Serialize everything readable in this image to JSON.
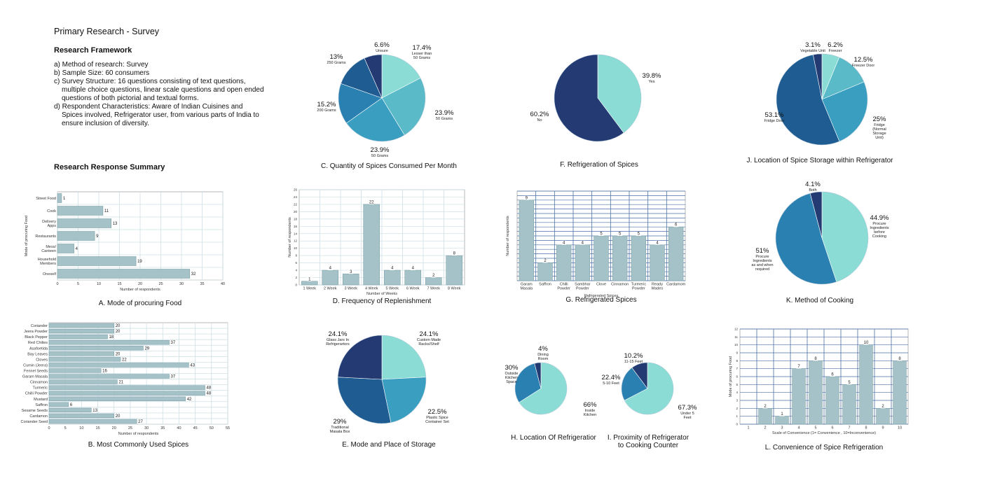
{
  "intro": {
    "title": "Primary Research - Survey",
    "framework_heading": "Research Framework",
    "items": [
      "a) Method of research: Survey",
      "b) Sample Size: 60 consumers",
      "c) Survey Structure: 16 questions consisting of text questions, multiple choice questions, linear scale questions and open ended questions of both pictorial and textual forms.",
      "d) Respondent Characteristics: Aware of Indian Cuisines and Spices involved, Refrigerator user, from various parts of India to ensure inclusion of diversity."
    ],
    "summary_heading": "Research Response Summary"
  },
  "colors": {
    "bar_fill": "#a4c2c8",
    "bar_stroke": "#7fa2aa",
    "pie": [
      "#8adcd4",
      "#5bbac8",
      "#3a9ec0",
      "#2a80b0",
      "#1e5c91",
      "#243a73"
    ]
  },
  "chart_data": [
    {
      "id": "A",
      "type": "bar",
      "orientation": "horizontal",
      "title": "A. Mode of procuring Food",
      "xlabel": "Number of respondents",
      "ylabel": "Mode of procuring Food",
      "categories": [
        "Street Food",
        "Cook",
        "Delivery Apps",
        "Restaurants",
        "Mess/ Canteen",
        "Household Members",
        "Oneself"
      ],
      "values": [
        1,
        11,
        13,
        9,
        4,
        19,
        32
      ],
      "xlim": [
        0,
        40
      ],
      "xticks": [
        0,
        5,
        10,
        15,
        20,
        25,
        30,
        35,
        40
      ],
      "grid": true
    },
    {
      "id": "B",
      "type": "bar",
      "orientation": "horizontal",
      "title": "B. Most Commonly Used Spices",
      "xlabel": "Number of respondents",
      "ylabel": "",
      "categories": [
        "Coriander",
        "Jeera Powder",
        "Black Pepper",
        "Red Chilies",
        "Asafoetida",
        "Bay Leaves",
        "Cloves",
        "Cumin (Jeera)",
        "Fennel Seeds",
        "Garam Masala",
        "Cinnamon",
        "Turmeric",
        "Chilli Powder",
        "Mustard",
        "Saffron",
        "Sesame Seeds",
        "Cardamon",
        "Coriander Seed"
      ],
      "values": [
        20,
        20,
        18,
        37,
        29,
        20,
        22,
        43,
        16,
        37,
        21,
        48,
        48,
        42,
        6,
        13,
        20,
        27
      ],
      "xlim": [
        0,
        55
      ],
      "xticks": [
        0,
        5,
        10,
        15,
        20,
        25,
        30,
        35,
        40,
        45,
        50,
        55
      ],
      "grid": true
    },
    {
      "id": "C",
      "type": "pie",
      "title": "C. Quantity of Spices Consumed Per Month",
      "slices": [
        {
          "label": "Lesser than 50 Grams",
          "value": 17.4,
          "pct": "17.4%"
        },
        {
          "label": "50 Grams",
          "value": 23.9,
          "pct": "23.9%"
        },
        {
          "label": "50 Grams",
          "value": 23.9,
          "pct": "23.9%"
        },
        {
          "label": "200 Grams",
          "value": 15.2,
          "pct": "15.2%"
        },
        {
          "label": "250 Grams",
          "value": 13,
          "pct": "13%"
        },
        {
          "label": "Unsure",
          "value": 6.6,
          "pct": "6.6%"
        }
      ]
    },
    {
      "id": "D",
      "type": "bar",
      "orientation": "vertical",
      "title": "D. Frequency of Replenishment",
      "xlabel": "Number of Weeks",
      "ylabel": "Number of respondents",
      "categories": [
        "1 Week",
        "2 Week",
        "3 Week",
        "4 Week",
        "5 Week",
        "6 Week",
        "7 Week",
        "8 Week"
      ],
      "values": [
        1,
        4,
        3,
        22,
        4,
        4,
        2,
        8
      ],
      "ylim": [
        0,
        26
      ],
      "yticks": [
        0,
        2,
        4,
        6,
        8,
        10,
        12,
        14,
        16,
        18,
        20,
        22,
        24,
        26
      ],
      "grid": true
    },
    {
      "id": "E",
      "type": "pie",
      "title": "E. Mode and Place of Storage",
      "slices": [
        {
          "label": "Custom Made Racks/Shelf",
          "value": 24.1,
          "pct": "24.1%"
        },
        {
          "label": "Plastic Spice Container Set",
          "value": 22.5,
          "pct": "22.5%"
        },
        {
          "label": "Traditional Masala Box",
          "value": 29,
          "pct": "29%"
        },
        {
          "label": "Glass Jars In Refrigerartors",
          "value": 24.1,
          "pct": "24.1%"
        }
      ]
    },
    {
      "id": "F",
      "type": "pie",
      "title": "F. Refrigeration of Spices",
      "slices": [
        {
          "label": "Yes",
          "value": 39.8,
          "pct": "39.8%"
        },
        {
          "label": "No",
          "value": 60.2,
          "pct": "60.2%"
        }
      ]
    },
    {
      "id": "G",
      "type": "bar",
      "orientation": "vertical",
      "title": "G. Refrigerated Spices",
      "xlabel": "Refrigerated Spices",
      "ylabel": "Number of respondents",
      "categories": [
        "Garam Masala",
        "Saffron",
        "Chilli Powder",
        "Sambhar Powder",
        "Clove",
        "Cinnamon",
        "Turmeric Powder",
        "Ready Mades",
        "Cardamom"
      ],
      "values": [
        9,
        2,
        4,
        4,
        5,
        5,
        5,
        4,
        6
      ],
      "ylim": [
        0,
        10
      ],
      "grid": true
    },
    {
      "id": "H",
      "type": "pie",
      "title": "H. Location Of Refrigeratior",
      "slices": [
        {
          "label": "Inside Kitchen",
          "value": 66,
          "pct": "66%"
        },
        {
          "label": "Outside Kitchen Space",
          "value": 30,
          "pct": "30%"
        },
        {
          "label": "Dining Room",
          "value": 4,
          "pct": "4%"
        }
      ]
    },
    {
      "id": "I",
      "type": "pie",
      "title": "I. Proximity of Refrigerator to Cooking Counter",
      "slices": [
        {
          "label": "Under 5 Feet",
          "value": 67.3,
          "pct": "67.3%"
        },
        {
          "label": "5-10 Feet",
          "value": 22.4,
          "pct": "22.4%"
        },
        {
          "label": "11-15 Feet",
          "value": 10.2,
          "pct": "10.2%"
        }
      ]
    },
    {
      "id": "J",
      "type": "pie",
      "title": "J. Location of Spice Storage within Refrigerator",
      "slices": [
        {
          "label": "Freezer",
          "value": 6.2,
          "pct": "6.2%"
        },
        {
          "label": "Freezer Door",
          "value": 12.5,
          "pct": "12.5%"
        },
        {
          "label": "Fridge (Normal Storage Unit)",
          "value": 25,
          "pct": "25%"
        },
        {
          "label": "Fridge Door",
          "value": 53.1,
          "pct": "53.1%"
        },
        {
          "label": "Vegetable Unit",
          "value": 3.1,
          "pct": "3.1%"
        }
      ]
    },
    {
      "id": "K",
      "type": "pie",
      "title": "K. Method of Cooking",
      "slices": [
        {
          "label": "Procure Ingredients before Cooking",
          "value": 44.9,
          "pct": "44.9%"
        },
        {
          "label": "Procure Ingredients as and when required",
          "value": 51,
          "pct": "51%"
        },
        {
          "label": "Both",
          "value": 4.1,
          "pct": "4.1%"
        }
      ]
    },
    {
      "id": "L",
      "type": "bar",
      "orientation": "vertical",
      "title": "L. Convenience of Spice Refrigeration",
      "xlabel": "Scale of Convenience (1= Convenience , 10=Inconvenience)",
      "ylabel": "Mode of procuring Food",
      "categories": [
        "1",
        "2",
        "3",
        "4",
        "5",
        "6",
        "7",
        "8",
        "9",
        "10"
      ],
      "values": [
        0,
        2,
        1,
        7,
        8,
        6,
        5,
        10,
        2,
        8
      ],
      "ylim": [
        0,
        12
      ],
      "yticks": [
        0,
        1,
        2,
        3,
        4,
        5,
        6,
        7,
        8,
        9,
        10,
        11,
        12
      ],
      "grid": true
    }
  ]
}
